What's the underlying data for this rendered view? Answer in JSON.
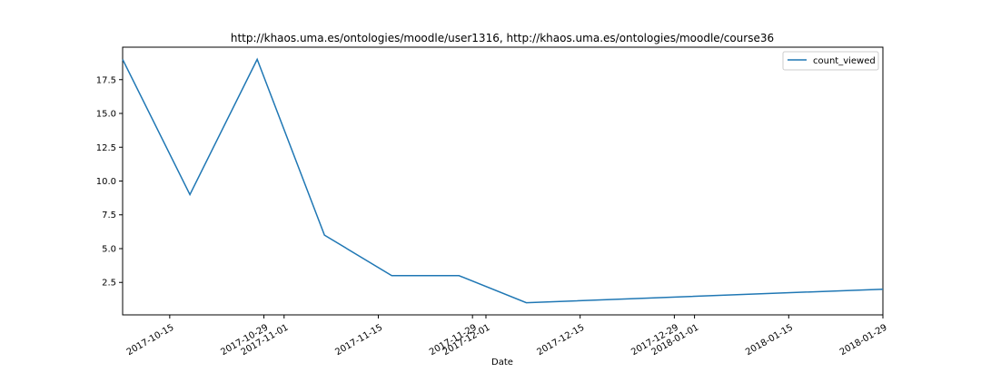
{
  "chart_data": {
    "type": "line",
    "title": "http://khaos.uma.es/ontologies/moodle/user1316, http://khaos.uma.es/ontologies/moodle/course36",
    "xlabel": "Date",
    "ylabel": "",
    "x_type": "date",
    "xlim": [
      "2017-10-08",
      "2018-01-29"
    ],
    "ylim": [
      0.1,
      19.9
    ],
    "series": [
      {
        "name": "count_viewed",
        "color": "#1f77b4",
        "x": [
          "2017-10-08",
          "2017-10-18",
          "2017-10-28",
          "2017-11-07",
          "2017-11-17",
          "2017-11-27",
          "2017-12-07",
          "2018-01-29"
        ],
        "values": [
          19,
          9,
          19,
          6,
          3,
          3,
          1,
          2
        ]
      }
    ],
    "y_ticks": [
      {
        "value": 2.5,
        "label": "2.5"
      },
      {
        "value": 5.0,
        "label": "5.0"
      },
      {
        "value": 7.5,
        "label": "7.5"
      },
      {
        "value": 10.0,
        "label": "10.0"
      },
      {
        "value": 12.5,
        "label": "12.5"
      },
      {
        "value": 15.0,
        "label": "15.0"
      },
      {
        "value": 17.5,
        "label": "17.5"
      }
    ],
    "x_ticks": [
      {
        "value": "2017-10-15",
        "label": "2017-10-15"
      },
      {
        "value": "2017-10-29",
        "label": "2017-10-29"
      },
      {
        "value": "2017-11-01",
        "label": "2017-11-01"
      },
      {
        "value": "2017-11-15",
        "label": "2017-11-15"
      },
      {
        "value": "2017-11-29",
        "label": "2017-11-29"
      },
      {
        "value": "2017-12-01",
        "label": "2017-12-01"
      },
      {
        "value": "2017-12-15",
        "label": "2017-12-15"
      },
      {
        "value": "2017-12-29",
        "label": "2017-12-29"
      },
      {
        "value": "2018-01-01",
        "label": "2018-01-01"
      },
      {
        "value": "2018-01-15",
        "label": "2018-01-15"
      },
      {
        "value": "2018-01-29",
        "label": "2018-01-29"
      }
    ],
    "legend_position": "top-right",
    "grid": false
  }
}
